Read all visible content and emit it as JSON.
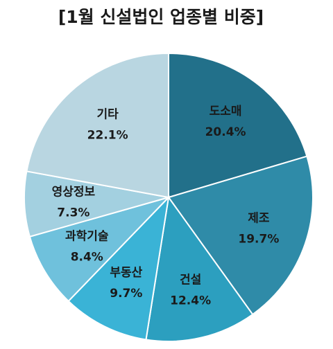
{
  "chart_data": {
    "type": "pie",
    "title": "[1월 신설법인 업종별 비중]",
    "categories": [
      "도소매",
      "제조",
      "건설",
      "부동산",
      "과학기술",
      "영상정보",
      "기타"
    ],
    "values": [
      20.4,
      19.7,
      12.4,
      9.7,
      8.4,
      7.3,
      22.1
    ],
    "value_labels": [
      "20.4%",
      "19.7%",
      "12.4%",
      "9.7%",
      "8.4%",
      "7.3%",
      "22.1%"
    ],
    "colors": [
      "#22708a",
      "#2f8ba8",
      "#2c9fbf",
      "#3ab3d6",
      "#6fc1dc",
      "#a3d0e0",
      "#b9d6e1"
    ]
  }
}
